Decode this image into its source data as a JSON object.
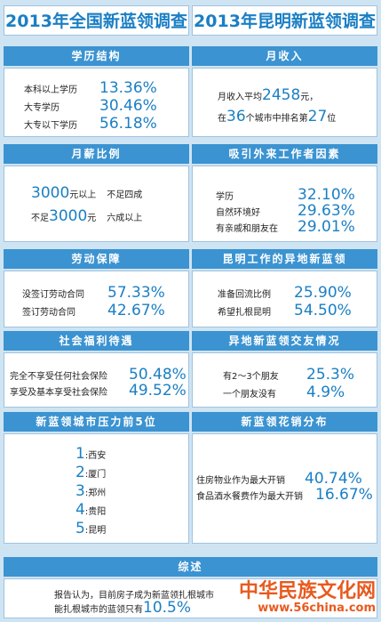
{
  "left_title": "2013年全国新蓝领调查",
  "right_title": "2013年昆明新蓝领调查",
  "education": {
    "header": "学历结构",
    "rows": [
      {
        "label": "本科以上学历",
        "value": "13.36%"
      },
      {
        "label": "大专学历",
        "value": "30.46%"
      },
      {
        "label": "大专以下学历",
        "value": "56.18%"
      }
    ]
  },
  "income": {
    "header": "月收入",
    "line1_prefix": "月收入平均",
    "line1_value": "2458",
    "line1_suffix": "元，",
    "line2_prefix": "在",
    "line2_count": "36",
    "line2_mid": "个城市中排名第",
    "line2_rank": "27",
    "line2_suffix": "位"
  },
  "salary": {
    "header": "月薪比例",
    "row1_value": "3000",
    "row1_unit": "元以上",
    "row1_ratio": "不足四成",
    "row2_prefix": "不足",
    "row2_value": "3000",
    "row2_unit": "元",
    "row2_ratio": "六成以上"
  },
  "attraction": {
    "header": "吸引外来工作者因素",
    "rows": [
      {
        "label": "学历",
        "value": "32.10%"
      },
      {
        "label": "自然环境好",
        "value": "29.63%"
      },
      {
        "label": "有亲戚和朋友在",
        "value": "29.01%"
      }
    ]
  },
  "labor": {
    "header": "劳动保障",
    "rows": [
      {
        "label": "没签订劳动合同",
        "value": "57.33%"
      },
      {
        "label": "签订劳动合同",
        "value": "42.67%"
      }
    ]
  },
  "migrant": {
    "header": "昆明工作的异地新蓝领",
    "rows": [
      {
        "label": "准备回流比例",
        "value": "25.90%"
      },
      {
        "label": "希望扎根昆明",
        "value": "54.50%"
      }
    ]
  },
  "welfare": {
    "header": "社会福利待遇",
    "rows": [
      {
        "label": "完全不享受任何社会保险",
        "value": "50.48%"
      },
      {
        "label": "享受及基本享受社会保险",
        "value": "49.52%"
      }
    ]
  },
  "friends": {
    "header": "异地新蓝领交友情况",
    "rows": [
      {
        "label": "有2～3个朋友",
        "value": "25.3%"
      },
      {
        "label": "一个朋友没有",
        "value": "4.9%"
      }
    ]
  },
  "pressure": {
    "header": "新蓝领城市压力前5位",
    "cities": [
      {
        "rank": "1",
        "name": "西安"
      },
      {
        "rank": "2",
        "name": "厦门"
      },
      {
        "rank": "3",
        "name": "郑州"
      },
      {
        "rank": "4",
        "name": "贵阳"
      },
      {
        "rank": "5",
        "name": "昆明"
      }
    ]
  },
  "spending": {
    "header": "新蓝领花销分布",
    "rows": [
      {
        "label": "住房物业作为最大开销",
        "value": "40.74%"
      },
      {
        "label": "食品酒水餐费作为最大开销",
        "value": "16.67%"
      }
    ]
  },
  "summary": {
    "header": "综述",
    "line1": "报告认为，目前房子成为新蓝领扎根城市",
    "line2_prefix": "能扎根城市的蓝领只有",
    "line2_value": "10.5%"
  },
  "watermark": {
    "name": "中华民族文化网",
    "url": "www.56china.com"
  },
  "colors": {
    "accent": "#1a7fc4",
    "header_bg": "#3b93d1",
    "page_bg": "#cfe4f3",
    "watermark": "#e85a1f"
  }
}
